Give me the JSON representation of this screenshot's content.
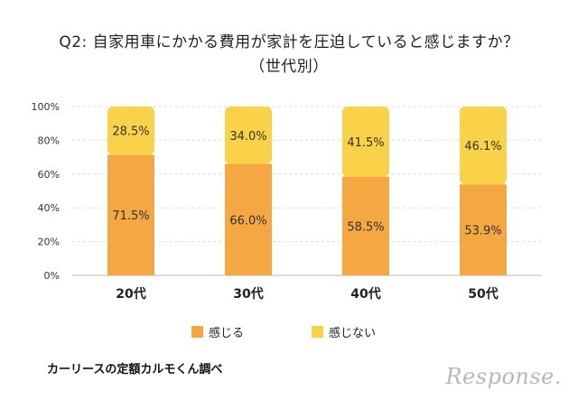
{
  "title_line1": "Q2: 自家用車にかかる費用が家計を圧迫していると感じますか？",
  "title_line2": "（世代別）",
  "chart_data": {
    "type": "bar",
    "stacked": true,
    "categories": [
      "20代",
      "30代",
      "40代",
      "50代"
    ],
    "series": [
      {
        "name": "感じる",
        "values": [
          71.5,
          66.0,
          58.5,
          53.9
        ],
        "color": "#F5A742"
      },
      {
        "name": "感じない",
        "values": [
          28.5,
          34.0,
          41.5,
          46.1
        ],
        "color": "#F9D24A"
      }
    ],
    "value_labels": [
      [
        "71.5%",
        "66.0%",
        "58.5%",
        "53.9%"
      ],
      [
        "28.5%",
        "34.0%",
        "41.5%",
        "46.1%"
      ]
    ],
    "y_ticks": [
      "0%",
      "20%",
      "40%",
      "60%",
      "80%",
      "100%"
    ],
    "ylim": [
      0,
      100
    ],
    "grid": true,
    "legend_position": "bottom"
  },
  "source": "カーリースの定額カルモくん調べ",
  "logo_text": "Response."
}
